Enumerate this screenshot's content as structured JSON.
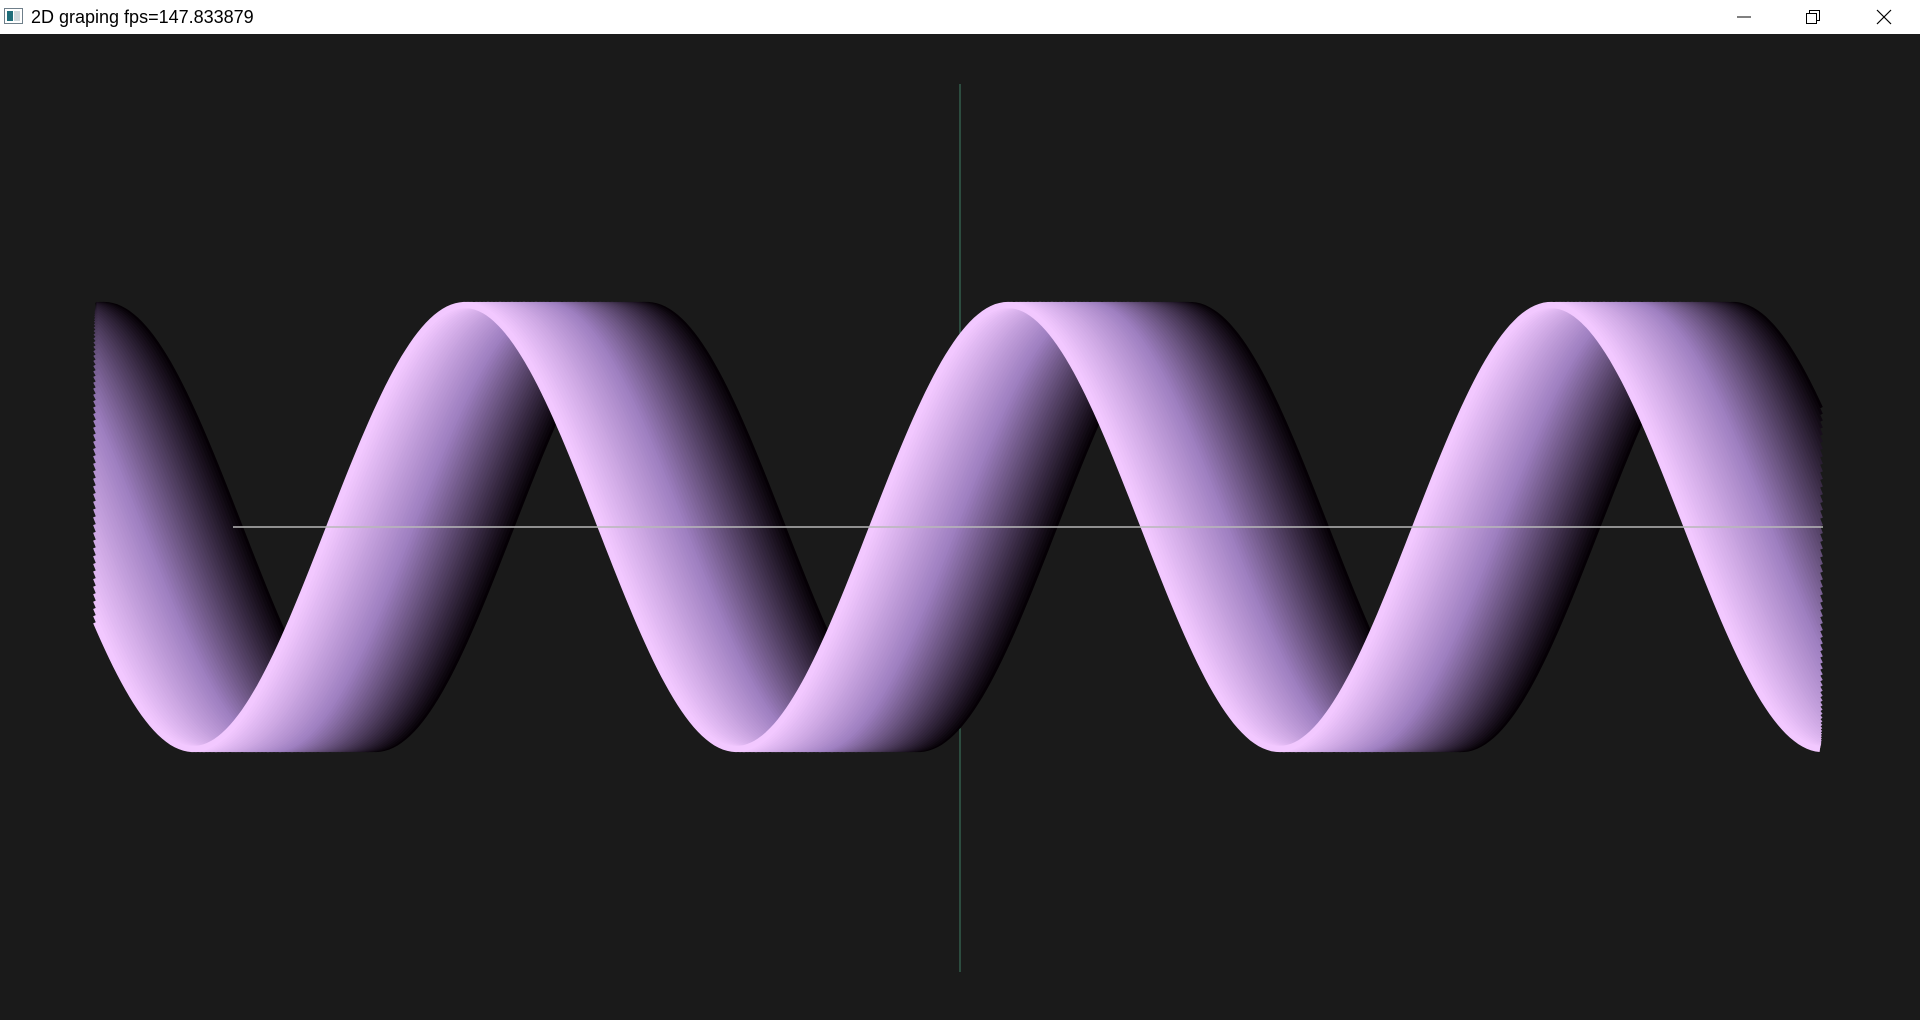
{
  "window": {
    "title": "2D graping fps=147.833879"
  },
  "titlebar_buttons": {
    "minimize": "minimize-icon",
    "restore": "restore-icon",
    "close": "close-icon"
  },
  "plot": {
    "background_color": "#1a1a1a",
    "x_axis_color": "#b8b8b8",
    "y_axis_color": "#3f7f64",
    "ribbon_highlight_color": "#f2c8ff",
    "ribbon_mid_color": "#9e7fc0",
    "ribbon_shadow_color": "#050005",
    "curve": "sine ribbon",
    "cycles_visible": 3.2
  }
}
